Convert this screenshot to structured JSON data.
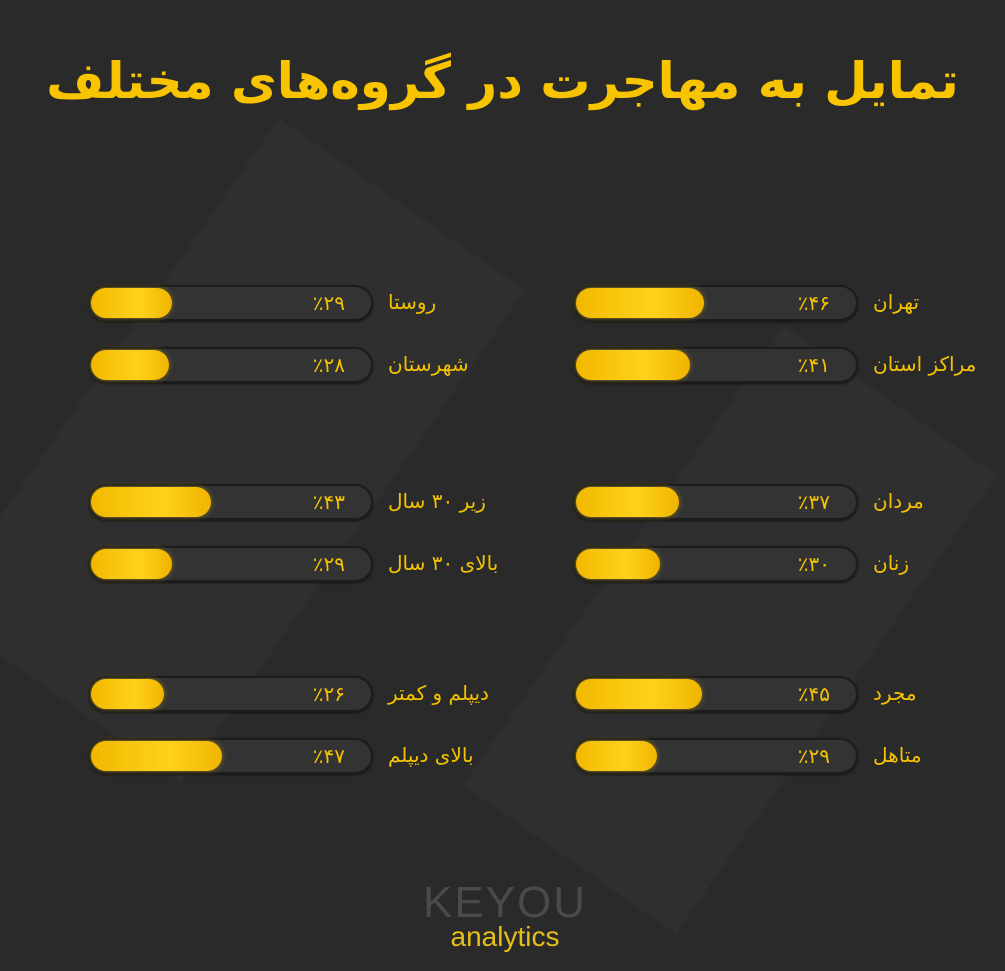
{
  "title": "تمایل به مهاجرت در گروه‌های مختلف",
  "chart_data": {
    "type": "bar",
    "title": "تمایل به مهاجرت در گروه‌های مختلف",
    "unit": "%",
    "xlim": [
      0,
      100
    ],
    "groups": [
      {
        "side": "right",
        "items": [
          {
            "label": "تهران",
            "value": 46,
            "text": "٪۴۶"
          },
          {
            "label": "مراکز استان",
            "value": 41,
            "text": "٪۴۱"
          }
        ]
      },
      {
        "side": "left",
        "items": [
          {
            "label": "روستا",
            "value": 29,
            "text": "٪۲۹"
          },
          {
            "label": "شهرستان",
            "value": 28,
            "text": "٪۲۸"
          }
        ]
      },
      {
        "side": "right",
        "items": [
          {
            "label": "مردان",
            "value": 37,
            "text": "٪۳۷"
          },
          {
            "label": "زنان",
            "value": 30,
            "text": "٪۳۰"
          }
        ]
      },
      {
        "side": "left",
        "items": [
          {
            "label": "زیر ۳۰ سال",
            "value": 43,
            "text": "٪۴۳"
          },
          {
            "label": "بالای ۳۰ سال",
            "value": 29,
            "text": "٪۲۹"
          }
        ]
      },
      {
        "side": "right",
        "items": [
          {
            "label": "مجرد",
            "value": 45,
            "text": "٪۴۵"
          },
          {
            "label": "متاهل",
            "value": 29,
            "text": "٪۲۹"
          }
        ]
      },
      {
        "side": "left",
        "items": [
          {
            "label": "دیپلم و کمتر",
            "value": 26,
            "text": "٪۲۶"
          },
          {
            "label": "بالای دیپلم",
            "value": 47,
            "text": "٪۴۷"
          }
        ]
      }
    ]
  },
  "logo": {
    "top": "KEYOU",
    "bottom": "analytics"
  },
  "colors": {
    "accent": "#f8c400",
    "background": "#2a2a2a"
  }
}
